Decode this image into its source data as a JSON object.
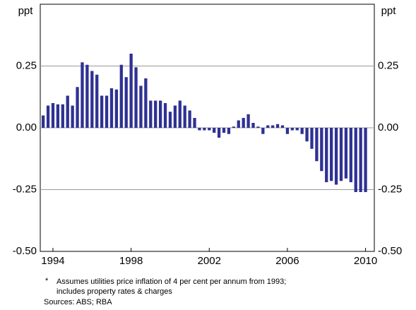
{
  "chart_data": {
    "type": "bar",
    "y_label": "ppt",
    "y2_label": "ppt",
    "x": [
      1993.5,
      1993.75,
      1994,
      1994.25,
      1994.5,
      1994.75,
      1995,
      1995.25,
      1995.5,
      1995.75,
      1996,
      1996.25,
      1996.5,
      1996.75,
      1997,
      1997.25,
      1997.5,
      1997.75,
      1998,
      1998.25,
      1998.5,
      1998.75,
      1999,
      1999.25,
      1999.5,
      1999.75,
      2000,
      2000.25,
      2000.5,
      2000.75,
      2001,
      2001.25,
      2001.5,
      2001.75,
      2002,
      2002.25,
      2002.5,
      2002.75,
      2003,
      2003.25,
      2003.5,
      2003.75,
      2004,
      2004.25,
      2004.5,
      2004.75,
      2005,
      2005.25,
      2005.5,
      2005.75,
      2006,
      2006.25,
      2006.5,
      2006.75,
      2007,
      2007.25,
      2007.5,
      2007.75,
      2008,
      2008.25,
      2008.5,
      2008.75,
      2009,
      2009.25,
      2009.5,
      2009.75,
      2010
    ],
    "values": [
      0.05,
      0.09,
      0.1,
      0.095,
      0.095,
      0.13,
      0.09,
      0.165,
      0.265,
      0.255,
      0.23,
      0.215,
      0.13,
      0.13,
      0.16,
      0.155,
      0.255,
      0.205,
      0.3,
      0.245,
      0.17,
      0.2,
      0.11,
      0.11,
      0.11,
      0.1,
      0.065,
      0.09,
      0.11,
      0.09,
      0.07,
      0.04,
      -0.01,
      -0.01,
      -0.01,
      -0.02,
      -0.04,
      -0.02,
      -0.025,
      0.005,
      0.03,
      0.04,
      0.055,
      0.02,
      0.005,
      -0.025,
      0.01,
      0.01,
      0.015,
      0.01,
      -0.025,
      -0.01,
      -0.01,
      -0.025,
      -0.055,
      -0.085,
      -0.135,
      -0.175,
      -0.22,
      -0.215,
      -0.23,
      -0.215,
      -0.205,
      -0.22,
      -0.26,
      -0.26,
      -0.26
    ],
    "color": "#2e3192",
    "xlim": [
      1993.35,
      2010.45
    ],
    "xticks": [
      1994,
      1998,
      2002,
      2006,
      2010
    ],
    "ylim": [
      -0.5,
      0.5
    ],
    "yticks": [
      {
        "value": -0.5,
        "label": "-0.50"
      },
      {
        "value": -0.25,
        "label": "-0.25"
      },
      {
        "value": 0,
        "label": "0.00"
      },
      {
        "value": 0.25,
        "label": "0.25"
      }
    ],
    "grid": true,
    "notes": {
      "marker": "*",
      "line1": "Assumes utilities price inflation of 4 per cent per annum from 1993;",
      "line2": "includes property rates & charges",
      "sources": "Sources: ABS; RBA"
    }
  }
}
